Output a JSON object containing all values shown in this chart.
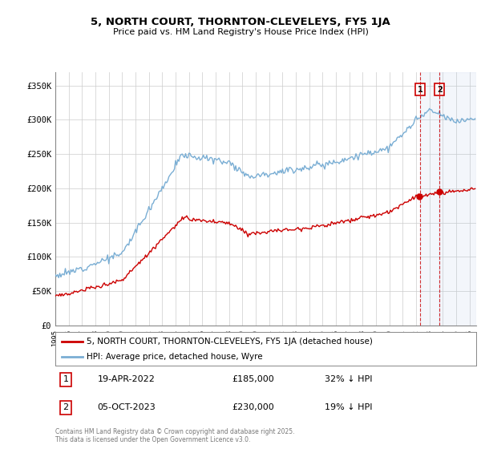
{
  "title": "5, NORTH COURT, THORNTON-CLEVELEYS, FY5 1JA",
  "subtitle": "Price paid vs. HM Land Registry's House Price Index (HPI)",
  "ylabel_ticks": [
    "£0",
    "£50K",
    "£100K",
    "£150K",
    "£200K",
    "£250K",
    "£300K",
    "£350K"
  ],
  "ylim": [
    0,
    370000
  ],
  "xlim_start": 1995.0,
  "xlim_end": 2026.5,
  "hpi_color": "#7aaed4",
  "price_color": "#cc0000",
  "marker1_date": 2022.29,
  "marker2_date": 2023.75,
  "marker1_price": 185000,
  "marker2_price": 230000,
  "transaction1_label": "19-APR-2022",
  "transaction1_price": "£185,000",
  "transaction1_hpi": "32% ↓ HPI",
  "transaction2_label": "05-OCT-2023",
  "transaction2_price": "£230,000",
  "transaction2_hpi": "19% ↓ HPI",
  "legend1": "5, NORTH COURT, THORNTON-CLEVELEYS, FY5 1JA (detached house)",
  "legend2": "HPI: Average price, detached house, Wyre",
  "footer": "Contains HM Land Registry data © Crown copyright and database right 2025.\nThis data is licensed under the Open Government Licence v3.0.",
  "background_color": "#ffffff",
  "grid_color": "#cccccc"
}
